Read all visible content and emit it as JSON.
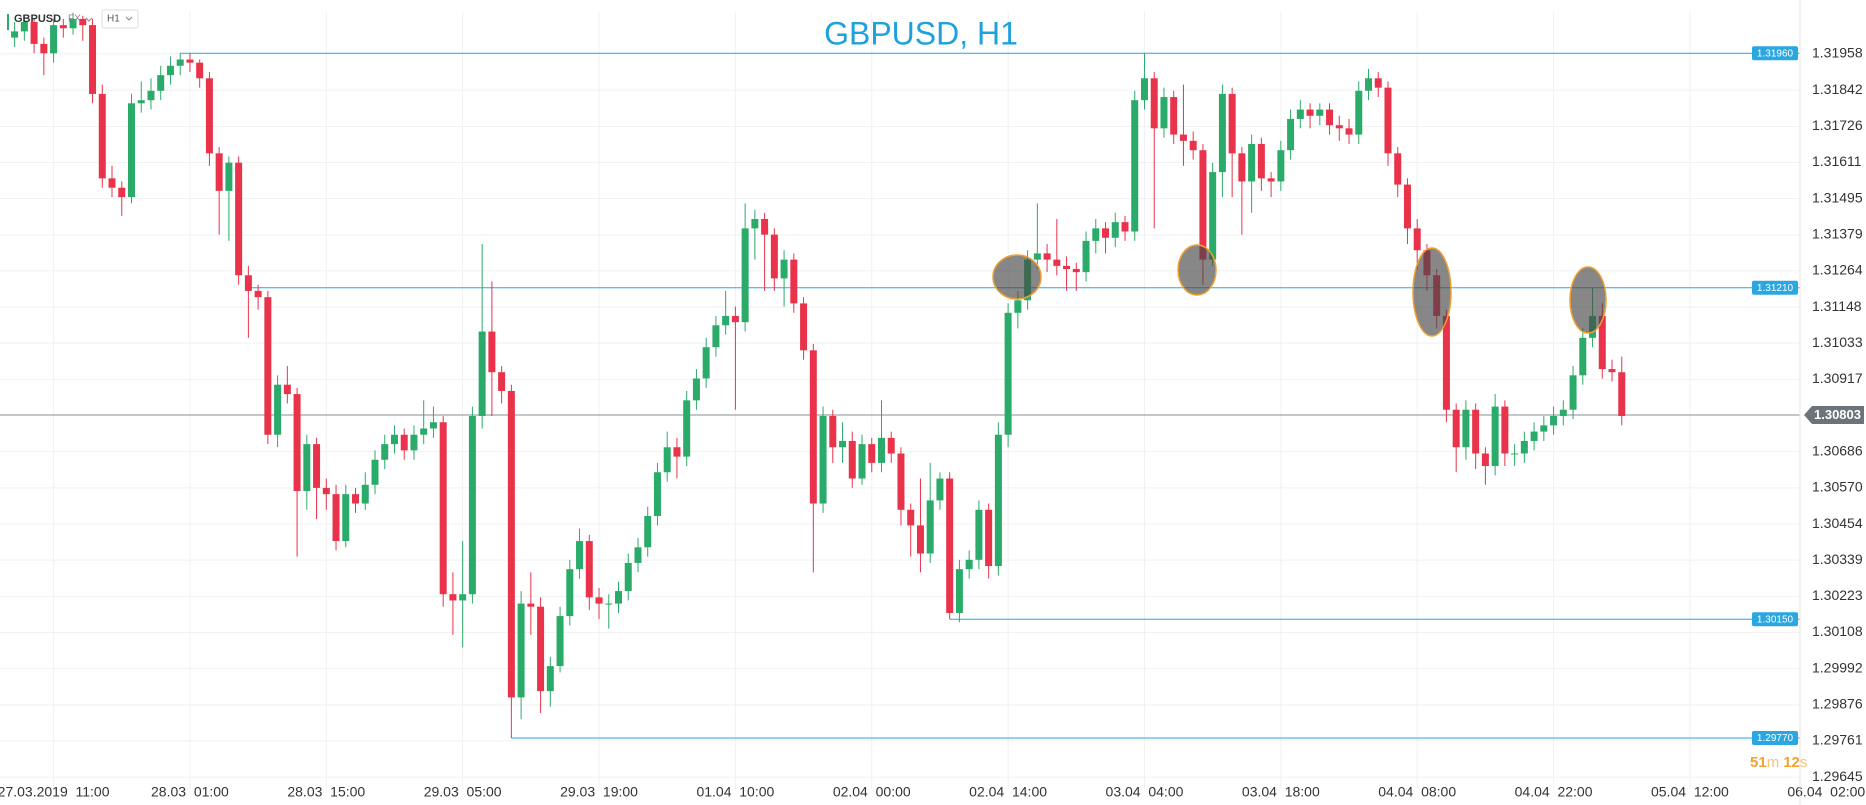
{
  "header": {
    "symbol": "GBPUSD",
    "market": "FX",
    "timeframe": "H1"
  },
  "countdown": [
    "51",
    "m",
    "12",
    "s"
  ],
  "chart_data": {
    "type": "candlestick",
    "title": "GBPUSD, H1",
    "up_color": "#2bab6a",
    "down_color": "#e8334a",
    "level_color": "#2aa7e0",
    "xlim": [
      -1.5,
      183.3
    ],
    "ylim": [
      1.29607,
      1.32092
    ],
    "grid": true,
    "yticks": [
      1.31958,
      1.31842,
      1.31726,
      1.31611,
      1.31495,
      1.31379,
      1.31264,
      1.31148,
      1.31033,
      1.30917,
      1.30686,
      {
        "value": 1.3057,
        "label": "1.30570"
      },
      1.30454,
      1.30339,
      1.30223,
      1.30108,
      1.29992,
      1.29876,
      1.29761,
      1.29645
    ],
    "xticks": [
      {
        "value": 4,
        "label": "27.03.2019  11:00"
      },
      {
        "value": 18,
        "label": "28.03  01:00"
      },
      {
        "value": 32,
        "label": "28.03  15:00"
      },
      {
        "value": 46,
        "label": "29.03  05:00"
      },
      {
        "value": 60,
        "label": "29.03  19:00"
      },
      {
        "value": 74,
        "label": "01.04  10:00"
      },
      {
        "value": 88,
        "label": "02.04  00:00"
      },
      {
        "value": 102,
        "label": "02.04  14:00"
      },
      {
        "value": 116,
        "label": "03.04  04:00"
      },
      {
        "value": 130,
        "label": "03.04  18:00"
      },
      {
        "value": 144,
        "label": "04.04  08:00"
      },
      {
        "value": 158,
        "label": "04.04  22:00"
      },
      {
        "value": 172,
        "label": "05.04  12:00"
      },
      {
        "value": 186,
        "label": "06.04  02:00"
      }
    ],
    "levels": [
      {
        "value": 1.3196,
        "label": "1.31960"
      },
      {
        "value": 1.3121,
        "label": "1.31210"
      },
      {
        "value": 1.3015,
        "label": "1.30150"
      },
      {
        "value": 1.2977,
        "label": "1.29770"
      }
    ],
    "last_price": 1.30803,
    "candles": [
      [
        1.3201,
        1.3206,
        1.3198,
        1.3203
      ],
      [
        1.3203,
        1.3208,
        1.32,
        1.3206
      ],
      [
        1.3206,
        1.3207,
        1.3196,
        1.3199
      ],
      [
        1.3199,
        1.3201,
        1.3189,
        1.3196
      ],
      [
        1.3196,
        1.3207,
        1.3193,
        1.3205
      ],
      [
        1.3205,
        1.3207,
        1.3201,
        1.3204
      ],
      [
        1.3204,
        1.3209,
        1.3202,
        1.3207
      ],
      [
        1.3207,
        1.3208,
        1.32,
        1.3205
      ],
      [
        1.3205,
        1.3207,
        1.318,
        1.3183
      ],
      [
        1.3183,
        1.3186,
        1.3153,
        1.3156
      ],
      [
        1.3156,
        1.316,
        1.315,
        1.3153
      ],
      [
        1.3153,
        1.3155,
        1.3144,
        1.315
      ],
      [
        1.315,
        1.3183,
        1.3148,
        1.318
      ],
      [
        1.318,
        1.3187,
        1.3177,
        1.3181
      ],
      [
        1.3181,
        1.3188,
        1.3178,
        1.3184
      ],
      [
        1.3184,
        1.3192,
        1.3181,
        1.3189
      ],
      [
        1.3189,
        1.3195,
        1.3186,
        1.3192
      ],
      [
        1.3192,
        1.3196,
        1.3189,
        1.3194
      ],
      [
        1.3194,
        1.3196,
        1.319,
        1.3193
      ],
      [
        1.3193,
        1.3194,
        1.3185,
        1.3188
      ],
      [
        1.3188,
        1.319,
        1.316,
        1.3164
      ],
      [
        1.3164,
        1.3166,
        1.3138,
        1.3152
      ],
      [
        1.3152,
        1.3163,
        1.3136,
        1.3161
      ],
      [
        1.3161,
        1.3163,
        1.3122,
        1.3125
      ],
      [
        1.3125,
        1.3128,
        1.3105,
        1.312
      ],
      [
        1.312,
        1.3122,
        1.3114,
        1.3118
      ],
      [
        1.3118,
        1.312,
        1.3071,
        1.3074
      ],
      [
        1.3074,
        1.3093,
        1.307,
        1.309
      ],
      [
        1.309,
        1.3096,
        1.3084,
        1.3087
      ],
      [
        1.3087,
        1.3089,
        1.3035,
        1.3056
      ],
      [
        1.3056,
        1.3074,
        1.305,
        1.3071
      ],
      [
        1.3071,
        1.3073,
        1.3047,
        1.3057
      ],
      [
        1.3057,
        1.306,
        1.305,
        1.3055
      ],
      [
        1.3055,
        1.3058,
        1.3037,
        1.304
      ],
      [
        1.304,
        1.3058,
        1.3038,
        1.3055
      ],
      [
        1.3055,
        1.3057,
        1.3049,
        1.3052
      ],
      [
        1.3052,
        1.3062,
        1.305,
        1.3058
      ],
      [
        1.3058,
        1.3069,
        1.3055,
        1.3066
      ],
      [
        1.3066,
        1.3074,
        1.3063,
        1.3071
      ],
      [
        1.3071,
        1.3077,
        1.3068,
        1.3074
      ],
      [
        1.3074,
        1.3076,
        1.3066,
        1.3069
      ],
      [
        1.3069,
        1.3077,
        1.3066,
        1.3074
      ],
      [
        1.3074,
        1.3085,
        1.3071,
        1.3076
      ],
      [
        1.3076,
        1.3083,
        1.3073,
        1.3078
      ],
      [
        1.3078,
        1.308,
        1.3019,
        1.3023
      ],
      [
        1.3023,
        1.303,
        1.301,
        1.3021
      ],
      [
        1.3021,
        1.304,
        1.3006,
        1.3023
      ],
      [
        1.3023,
        1.3083,
        1.302,
        1.308
      ],
      [
        1.308,
        1.3135,
        1.3076,
        1.3107
      ],
      [
        1.3107,
        1.3123,
        1.308,
        1.3094
      ],
      [
        1.3094,
        1.3096,
        1.3084,
        1.3088
      ],
      [
        1.3088,
        1.309,
        1.2977,
        1.299
      ],
      [
        1.299,
        1.3024,
        1.2983,
        1.302
      ],
      [
        1.302,
        1.303,
        1.301,
        1.3019
      ],
      [
        1.3019,
        1.3022,
        1.2985,
        1.2992
      ],
      [
        1.2992,
        1.3003,
        1.2987,
        1.3
      ],
      [
        1.3,
        1.3019,
        1.2998,
        1.3016
      ],
      [
        1.3016,
        1.3034,
        1.3013,
        1.3031
      ],
      [
        1.3031,
        1.3044,
        1.3028,
        1.304
      ],
      [
        1.304,
        1.3042,
        1.3018,
        1.3022
      ],
      [
        1.3022,
        1.3025,
        1.3015,
        1.302
      ],
      [
        1.302,
        1.3023,
        1.3012,
        1.302
      ],
      [
        1.302,
        1.3027,
        1.3017,
        1.3024
      ],
      [
        1.3024,
        1.3036,
        1.3021,
        1.3033
      ],
      [
        1.3033,
        1.3041,
        1.303,
        1.3038
      ],
      [
        1.3038,
        1.3051,
        1.3035,
        1.3048
      ],
      [
        1.3048,
        1.3065,
        1.3045,
        1.3062
      ],
      [
        1.3062,
        1.3075,
        1.3059,
        1.307
      ],
      [
        1.307,
        1.3073,
        1.306,
        1.3067
      ],
      [
        1.3067,
        1.3088,
        1.3064,
        1.3085
      ],
      [
        1.3085,
        1.3095,
        1.3082,
        1.3092
      ],
      [
        1.3092,
        1.3105,
        1.3089,
        1.3102
      ],
      [
        1.3102,
        1.3112,
        1.3099,
        1.3109
      ],
      [
        1.3109,
        1.312,
        1.3106,
        1.3112
      ],
      [
        1.3112,
        1.3115,
        1.3082,
        1.311
      ],
      [
        1.311,
        1.3148,
        1.3107,
        1.314
      ],
      [
        1.314,
        1.3146,
        1.313,
        1.3143
      ],
      [
        1.3143,
        1.3145,
        1.312,
        1.3138
      ],
      [
        1.3138,
        1.314,
        1.312,
        1.3124
      ],
      [
        1.3124,
        1.3133,
        1.3115,
        1.313
      ],
      [
        1.313,
        1.3132,
        1.3113,
        1.3116
      ],
      [
        1.3116,
        1.3118,
        1.3098,
        1.3101
      ],
      [
        1.3101,
        1.3103,
        1.303,
        1.3052
      ],
      [
        1.3052,
        1.3083,
        1.3049,
        1.308
      ],
      [
        1.308,
        1.3082,
        1.3065,
        1.307
      ],
      [
        1.307,
        1.3078,
        1.3065,
        1.3072
      ],
      [
        1.3072,
        1.3075,
        1.3057,
        1.306
      ],
      [
        1.306,
        1.3074,
        1.3058,
        1.3071
      ],
      [
        1.3071,
        1.3073,
        1.3062,
        1.3065
      ],
      [
        1.3065,
        1.3085,
        1.3062,
        1.3073
      ],
      [
        1.3073,
        1.3075,
        1.3065,
        1.3068
      ],
      [
        1.3068,
        1.307,
        1.3045,
        1.305
      ],
      [
        1.305,
        1.3052,
        1.3035,
        1.3045
      ],
      [
        1.3045,
        1.306,
        1.303,
        1.3036
      ],
      [
        1.3036,
        1.3065,
        1.3033,
        1.3053
      ],
      [
        1.3053,
        1.3062,
        1.305,
        1.306
      ],
      [
        1.306,
        1.3062,
        1.3015,
        1.3017
      ],
      [
        1.3017,
        1.3034,
        1.3014,
        1.3031
      ],
      [
        1.3031,
        1.3037,
        1.3028,
        1.3034
      ],
      [
        1.3034,
        1.3053,
        1.3031,
        1.305
      ],
      [
        1.305,
        1.3052,
        1.3028,
        1.3032
      ],
      [
        1.3032,
        1.3078,
        1.3029,
        1.3074
      ],
      [
        1.3074,
        1.3116,
        1.307,
        1.3113
      ],
      [
        1.3113,
        1.312,
        1.3108,
        1.3117
      ],
      [
        1.3117,
        1.3133,
        1.3114,
        1.313
      ],
      [
        1.313,
        1.3148,
        1.3127,
        1.3132
      ],
      [
        1.3132,
        1.3135,
        1.3126,
        1.313
      ],
      [
        1.313,
        1.3143,
        1.3125,
        1.3128
      ],
      [
        1.3128,
        1.3131,
        1.312,
        1.3127
      ],
      [
        1.3127,
        1.3129,
        1.312,
        1.3126
      ],
      [
        1.3126,
        1.3139,
        1.3123,
        1.3136
      ],
      [
        1.3136,
        1.3143,
        1.3132,
        1.314
      ],
      [
        1.314,
        1.3142,
        1.3132,
        1.3137
      ],
      [
        1.3137,
        1.3145,
        1.3134,
        1.3142
      ],
      [
        1.3142,
        1.3144,
        1.3136,
        1.3139
      ],
      [
        1.3139,
        1.3184,
        1.3136,
        1.3181
      ],
      [
        1.3181,
        1.3196,
        1.3178,
        1.3188
      ],
      [
        1.3188,
        1.319,
        1.314,
        1.3172
      ],
      [
        1.3172,
        1.3185,
        1.3169,
        1.3182
      ],
      [
        1.3182,
        1.3184,
        1.3167,
        1.317
      ],
      [
        1.317,
        1.3186,
        1.316,
        1.3168
      ],
      [
        1.3168,
        1.3171,
        1.3162,
        1.3165
      ],
      [
        1.3165,
        1.3167,
        1.3122,
        1.313
      ],
      [
        1.313,
        1.3161,
        1.3128,
        1.3158
      ],
      [
        1.3158,
        1.3186,
        1.315,
        1.3183
      ],
      [
        1.3183,
        1.3185,
        1.315,
        1.3164
      ],
      [
        1.3164,
        1.3166,
        1.3138,
        1.3155
      ],
      [
        1.3155,
        1.317,
        1.3145,
        1.3167
      ],
      [
        1.3167,
        1.3169,
        1.3152,
        1.3156
      ],
      [
        1.3156,
        1.3158,
        1.315,
        1.3155
      ],
      [
        1.3155,
        1.3168,
        1.3152,
        1.3165
      ],
      [
        1.3165,
        1.3178,
        1.3162,
        1.3175
      ],
      [
        1.3175,
        1.3181,
        1.3172,
        1.3178
      ],
      [
        1.3178,
        1.318,
        1.3172,
        1.3176
      ],
      [
        1.3176,
        1.318,
        1.3173,
        1.3178
      ],
      [
        1.3178,
        1.318,
        1.317,
        1.3173
      ],
      [
        1.3173,
        1.3176,
        1.3168,
        1.3172
      ],
      [
        1.3172,
        1.3175,
        1.3167,
        1.317
      ],
      [
        1.317,
        1.3187,
        1.3167,
        1.3184
      ],
      [
        1.3184,
        1.3191,
        1.3181,
        1.3188
      ],
      [
        1.3188,
        1.319,
        1.3182,
        1.3185
      ],
      [
        1.3185,
        1.3187,
        1.316,
        1.3164
      ],
      [
        1.3164,
        1.3166,
        1.315,
        1.3154
      ],
      [
        1.3154,
        1.3156,
        1.3135,
        1.314
      ],
      [
        1.314,
        1.3143,
        1.3127,
        1.3133
      ],
      [
        1.3133,
        1.3135,
        1.312,
        1.3125
      ],
      [
        1.3125,
        1.3127,
        1.3108,
        1.3112
      ],
      [
        1.3112,
        1.3114,
        1.3078,
        1.3082
      ],
      [
        1.3082,
        1.3084,
        1.3062,
        1.307
      ],
      [
        1.307,
        1.3085,
        1.3066,
        1.3082
      ],
      [
        1.3082,
        1.3084,
        1.3063,
        1.3068
      ],
      [
        1.3068,
        1.307,
        1.3058,
        1.3064
      ],
      [
        1.3064,
        1.3087,
        1.3061,
        1.3083
      ],
      [
        1.3083,
        1.3085,
        1.3064,
        1.3068
      ],
      [
        1.3068,
        1.3071,
        1.3064,
        1.3068
      ],
      [
        1.3068,
        1.3075,
        1.3065,
        1.3072
      ],
      [
        1.3072,
        1.3078,
        1.3069,
        1.3075
      ],
      [
        1.3075,
        1.308,
        1.3072,
        1.3077
      ],
      [
        1.3077,
        1.3083,
        1.3074,
        1.308
      ],
      [
        1.308,
        1.3085,
        1.3077,
        1.3082
      ],
      [
        1.3082,
        1.3096,
        1.3079,
        1.3093
      ],
      [
        1.3093,
        1.3108,
        1.309,
        1.3105
      ],
      [
        1.3105,
        1.3121,
        1.3102,
        1.3112
      ],
      [
        1.3112,
        1.3116,
        1.3092,
        1.3095
      ],
      [
        1.3095,
        1.3098,
        1.3091,
        1.3094
      ],
      [
        1.3094,
        1.3099,
        1.3077,
        1.308
      ]
    ]
  }
}
